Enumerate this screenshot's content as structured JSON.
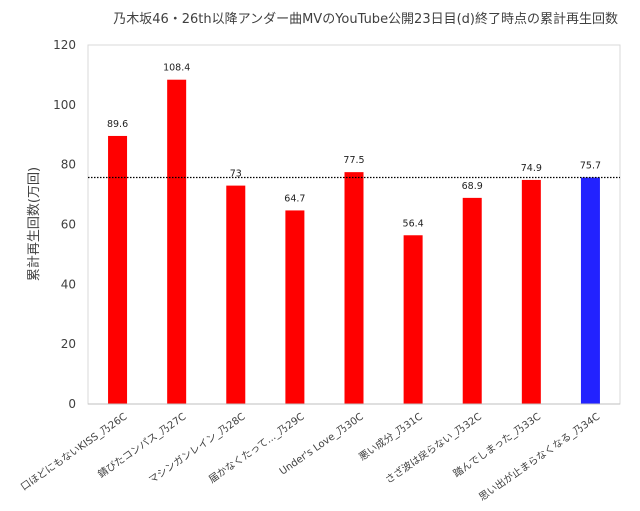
{
  "chart_data": {
    "type": "bar",
    "title": "乃木坂46・26th以降アンダー曲MVのYouTube公開23日目(d)終了時点の累計再生回数",
    "xlabel": "",
    "ylabel": "累計再生回数(万回)",
    "ylim": [
      0,
      120
    ],
    "yticks": [
      0,
      20,
      40,
      60,
      80,
      100,
      120
    ],
    "grid": false,
    "legend": "none",
    "categories": [
      "口ほどにもないKISS_乃26C",
      "錆びたコンパス_乃27C",
      "マシンガンレイン_乃28C",
      "届かなくたって..._乃29C",
      "Under's Love_乃30C",
      "悪い成分_乃31C",
      "さざ波は戻らない_乃32C",
      "踏んでしまった_乃33C",
      "思い出が止まらなくなる_乃34C"
    ],
    "values": [
      89.6,
      108.4,
      73,
      64.7,
      77.5,
      56.4,
      68.9,
      74.9,
      75.7
    ],
    "data_labels": [
      "89.6",
      "108.4",
      "73",
      "64.7",
      "77.5",
      "56.4",
      "68.9",
      "74.9",
      "75.7"
    ],
    "reference_line": 75.7,
    "colors": {
      "bar": "#ff0000",
      "highlight": "#2222ff",
      "highlight_index": 8,
      "reference_line": "#000000",
      "axis": "#bfbfbf",
      "text": "#404040"
    }
  }
}
